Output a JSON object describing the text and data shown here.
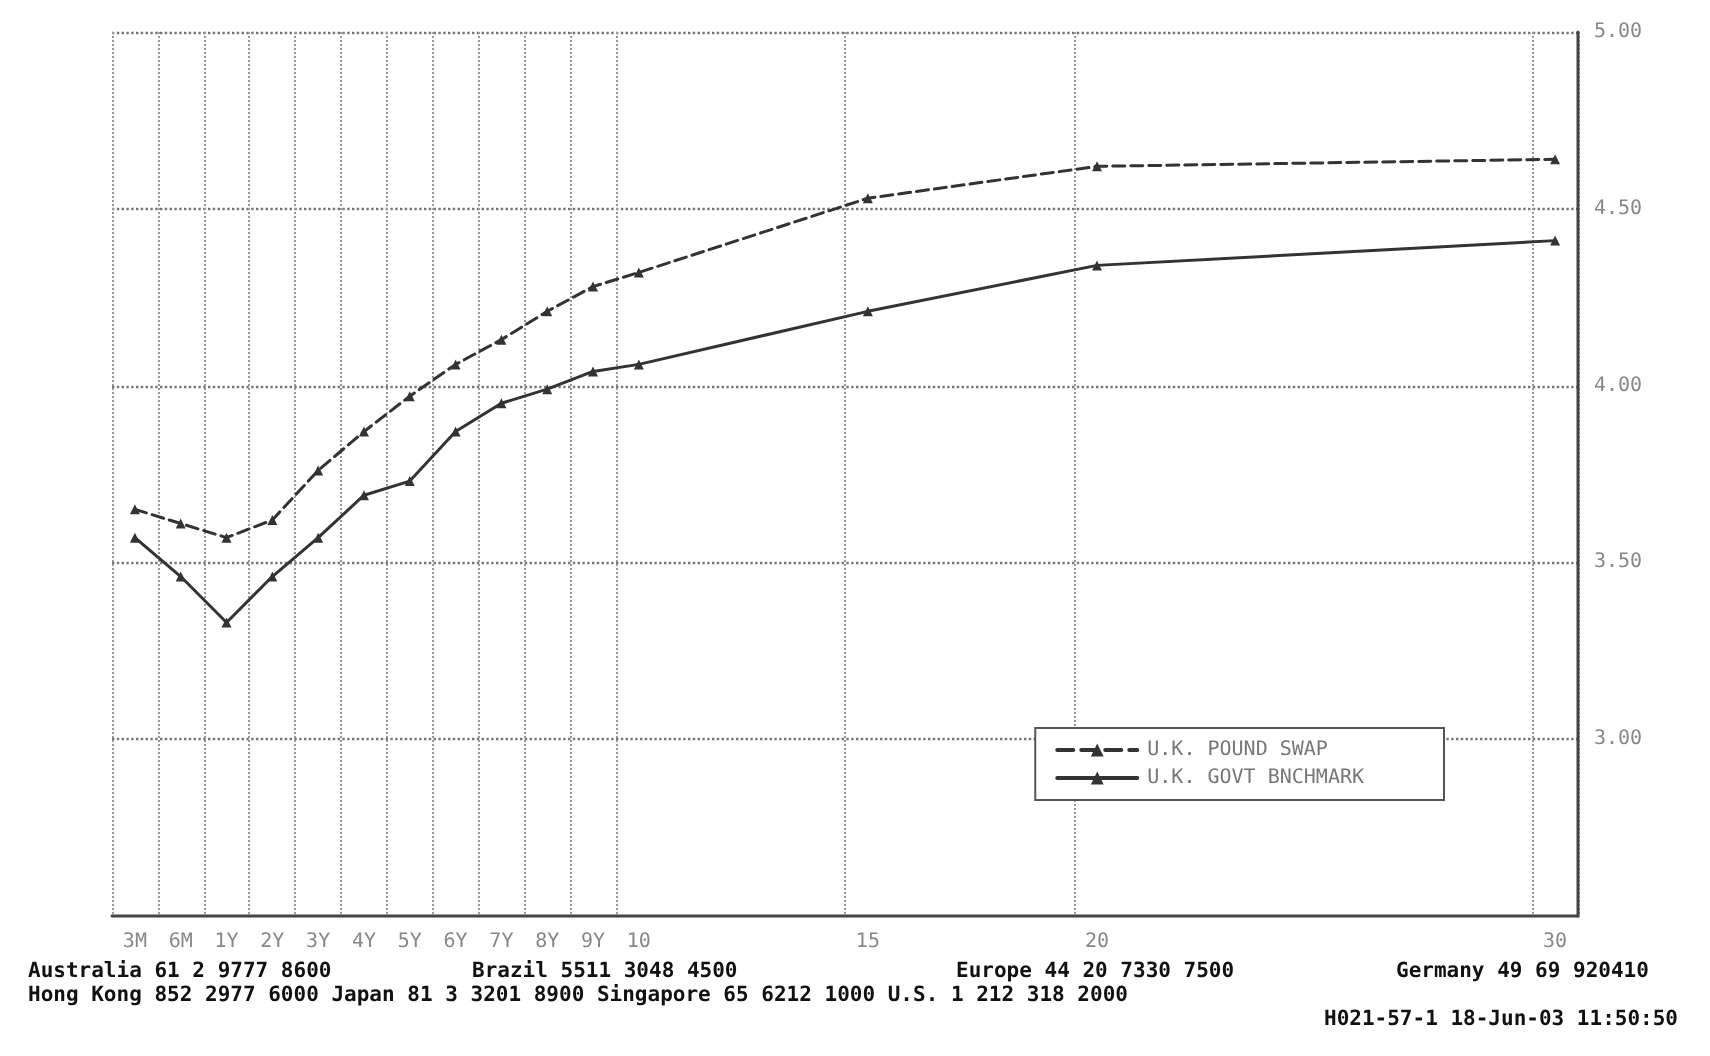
{
  "chart_data": {
    "type": "line",
    "categories": [
      "3M",
      "6M",
      "1Y",
      "2Y",
      "3Y",
      "4Y",
      "5Y",
      "6Y",
      "7Y",
      "8Y",
      "9Y",
      "10",
      null,
      null,
      null,
      null,
      "15",
      null,
      null,
      null,
      null,
      "20",
      null,
      null,
      null,
      null,
      null,
      null,
      null,
      null,
      null,
      "30"
    ],
    "series": [
      {
        "name": "U.K. POUND SWAP",
        "color": "#333333",
        "line_style": "dashed",
        "values": [
          3.65,
          3.61,
          3.57,
          3.62,
          3.76,
          3.87,
          3.97,
          4.06,
          4.13,
          4.21,
          4.28,
          4.32,
          null,
          null,
          null,
          null,
          4.53,
          null,
          null,
          null,
          null,
          4.62,
          null,
          null,
          null,
          null,
          null,
          null,
          null,
          null,
          null,
          4.64
        ]
      },
      {
        "name": "U.K. GOVT BNCHMARK",
        "color": "#333333",
        "line_style": "solid",
        "values": [
          3.57,
          3.46,
          3.33,
          3.46,
          3.57,
          3.69,
          3.73,
          3.87,
          3.95,
          3.99,
          4.04,
          4.06,
          null,
          null,
          null,
          null,
          4.21,
          null,
          null,
          null,
          null,
          4.34,
          null,
          null,
          null,
          null,
          null,
          null,
          null,
          null,
          null,
          4.41
        ]
      }
    ],
    "ylim": [
      2.5,
      5.0
    ],
    "yticks": [
      {
        "value": 3,
        "label": "3.00"
      },
      {
        "value": 3.5,
        "label": "3.50"
      },
      {
        "value": 4,
        "label": "4.00"
      },
      {
        "value": 4.5,
        "label": "4.50"
      },
      {
        "value": 5,
        "label": "5.00"
      }
    ],
    "grid": true,
    "legend": "bottom right",
    "marker": "triangle",
    "annotations": [
      "Australia 61 2 9777 8600",
      "Brazil 5511 3048 4500",
      "Europe 44 20 7330 7500",
      "Germany 49 69 920410",
      "Hong Kong 852 2977 6000 Japan 81 3 3201 8900 Singapore 65 6212 1000 U.S. 1 212 318 2000",
      "H021-57-1 18-Jun-03 11:50:50"
    ]
  }
}
